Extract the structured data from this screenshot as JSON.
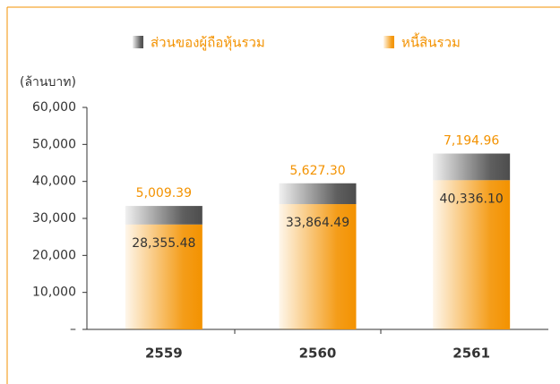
{
  "chart_data": {
    "type": "stacked_bar",
    "y_label": "(ล้านบาท)",
    "categories": [
      "2559",
      "2560",
      "2561"
    ],
    "series": [
      {
        "name": "หนี้สินรวม",
        "color": "#f39200",
        "values": [
          28355.48,
          33864.49,
          40336.1
        ],
        "value_labels": [
          "28,355.48",
          "33,864.49",
          "40,336.10"
        ]
      },
      {
        "name": "ส่วนของผู้ถือหุ้นรวม",
        "color": "#4d4d4d",
        "values": [
          5009.39,
          5627.3,
          7194.96
        ],
        "value_labels": [
          "5,009.39",
          "5,627.30",
          "7,194.96"
        ]
      }
    ],
    "ylim": [
      0,
      60000
    ],
    "yticks": [
      {
        "value": 0,
        "label": "–"
      },
      {
        "value": 10000,
        "label": "10,000"
      },
      {
        "value": 20000,
        "label": "20,000"
      },
      {
        "value": 30000,
        "label": "30,000"
      },
      {
        "value": 40000,
        "label": "40,000"
      },
      {
        "value": 50000,
        "label": "50,000"
      },
      {
        "value": 60000,
        "label": "60,000"
      }
    ]
  }
}
